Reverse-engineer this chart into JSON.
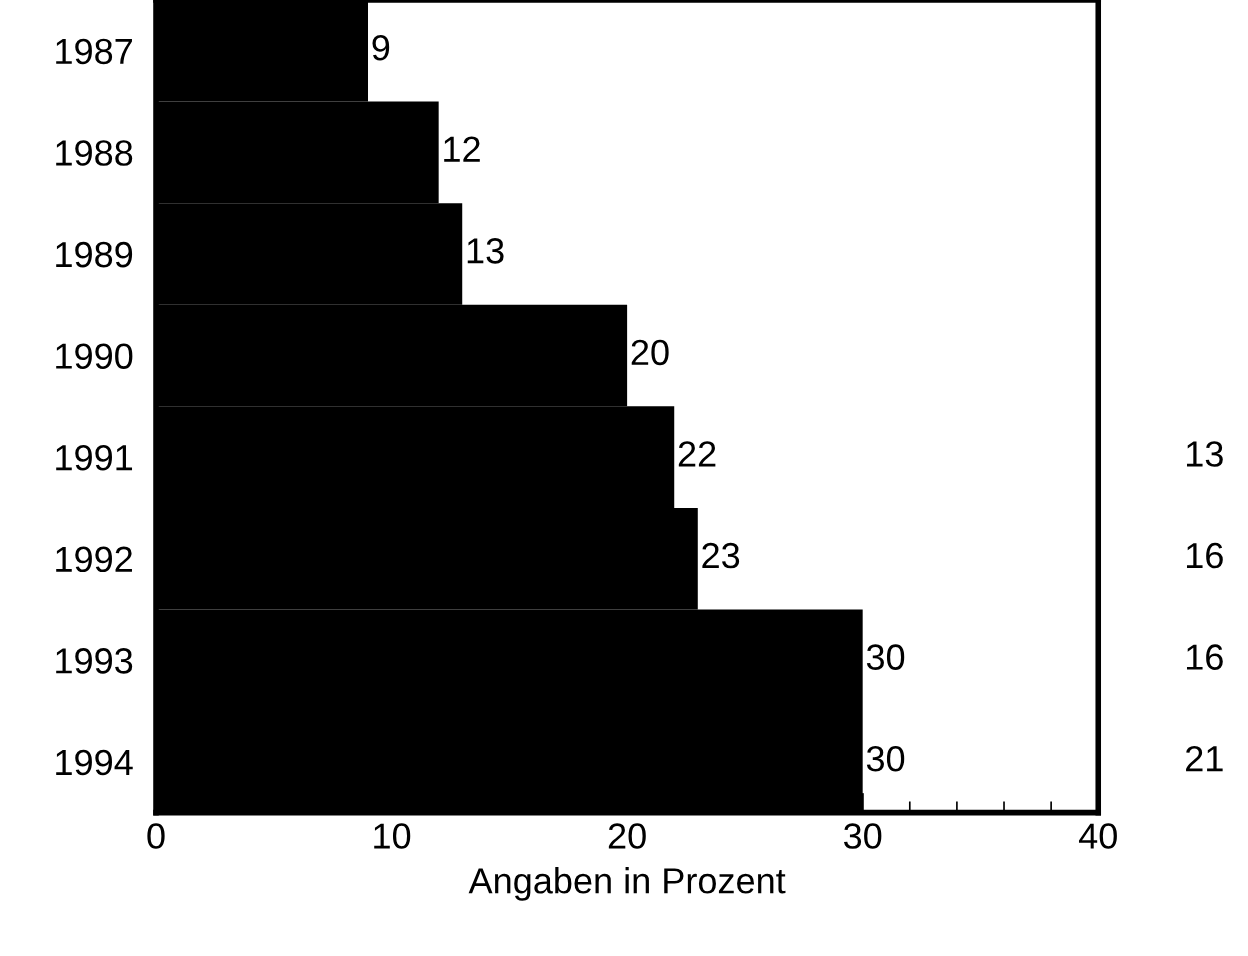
{
  "chart_data": {
    "type": "bar",
    "orientation": "horizontal",
    "xlabel": "Angaben in Prozent",
    "categories": [
      "1987",
      "1988",
      "1989",
      "1990",
      "1991",
      "1992",
      "1993",
      "1994"
    ],
    "values": [
      9,
      12,
      13,
      20,
      22,
      23,
      30,
      30
    ],
    "color": "#000000",
    "data_labels": true,
    "xlim": [
      0,
      40
    ],
    "xticks": [
      0,
      {
        "value": 2,
        "label": null
      },
      {
        "value": 4,
        "label": null
      },
      {
        "value": 6,
        "label": null
      },
      {
        "value": 8,
        "label": null
      },
      10,
      {
        "value": 12,
        "label": null
      },
      {
        "value": 14,
        "label": null
      },
      {
        "value": 16,
        "label": null
      },
      {
        "value": 18,
        "label": null
      },
      20,
      {
        "value": 22,
        "label": null
      },
      {
        "value": 24,
        "label": null
      },
      {
        "value": 26,
        "label": null
      },
      {
        "value": 28,
        "label": null
      },
      30,
      {
        "value": 32,
        "label": null
      },
      {
        "value": 34,
        "label": null
      },
      {
        "value": 36,
        "label": null
      },
      {
        "value": 38,
        "label": null
      },
      40
    ],
    "grid": false,
    "legend": false,
    "annotations": [
      "13",
      "16",
      "16",
      "21"
    ]
  }
}
